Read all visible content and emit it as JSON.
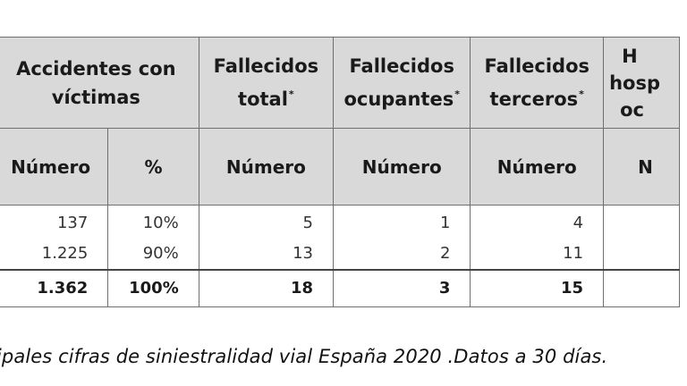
{
  "headers": {
    "accidentes_line1": "Accidentes con",
    "accidentes_line2": "víctimas",
    "fallecidos_total_line1": "Fallecidos",
    "fallecidos_total_line2": "total",
    "fallecidos_ocupantes_line1": "Fallecidos",
    "fallecidos_ocupantes_line2": "ocupantes",
    "fallecidos_terceros_line1": "Fallecidos",
    "fallecidos_terceros_line2": "terceros",
    "hosp_line1": "H",
    "hosp_line2": "hosp",
    "hosp_line3": "oc",
    "asterisk": "*"
  },
  "subheaders": {
    "numero": "Número",
    "percent": "%",
    "hosp_partial": "N"
  },
  "rows": [
    {
      "acc_num": "137",
      "acc_pct": "10%",
      "fal_total": "5",
      "fal_ocup": "1",
      "fal_terc": "4"
    },
    {
      "acc_num": "1.225",
      "acc_pct": "90%",
      "fal_total": "13",
      "fal_ocup": "2",
      "fal_terc": "11"
    }
  ],
  "totals": {
    "acc_num": "1.362",
    "acc_pct": "100%",
    "fal_total": "18",
    "fal_ocup": "3",
    "fal_terc": "15"
  },
  "caption": "ipales cifras de siniestralidad vial España 2020 .Datos a 30 días."
}
